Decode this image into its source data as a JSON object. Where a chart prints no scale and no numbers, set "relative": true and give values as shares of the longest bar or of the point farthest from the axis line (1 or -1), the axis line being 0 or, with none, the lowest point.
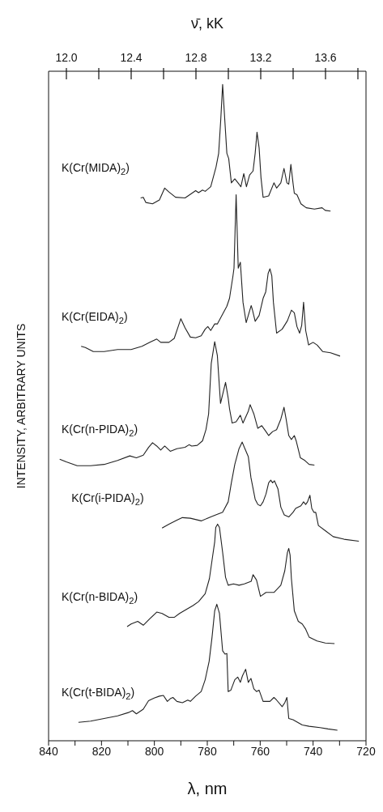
{
  "chart_data": {
    "type": "line",
    "relative": true,
    "xlabel": "λ, nm",
    "x2label": "ν̄, kK",
    "ylabel": "INTENSITY, ARBITRARY UNITS",
    "xlim": [
      840,
      720
    ],
    "xticks": [
      840,
      {
        "value": 830,
        "label": null
      },
      820,
      {
        "value": 810,
        "label": null
      },
      800,
      {
        "value": 790,
        "label": null
      },
      780,
      {
        "value": 770,
        "label": null
      },
      760,
      {
        "value": 750,
        "label": null
      },
      740,
      {
        "value": 730,
        "label": null
      },
      720
    ],
    "x2lim": [
      11.89,
      13.85
    ],
    "x2ticks": [
      {
        "value": 12.0,
        "label": "12.0"
      },
      {
        "value": 12.2,
        "label": null
      },
      {
        "value": 12.4,
        "label": "12.4"
      },
      {
        "value": 12.6,
        "label": null
      },
      {
        "value": 12.8,
        "label": "12.8"
      },
      {
        "value": 13.0,
        "label": null
      },
      {
        "value": 13.2,
        "label": "13.2"
      },
      {
        "value": 13.4,
        "label": null
      },
      {
        "value": 13.6,
        "label": "13.6"
      },
      {
        "value": 13.8,
        "label": null
      }
    ],
    "series": [
      {
        "name": "K(Cr(MIDA)$_{2}$)",
        "color": "#222222",
        "x": [
          805.2,
          804.2,
          803.2,
          800.7,
          798.1,
          796.1,
          794.5,
          792.0,
          788.4,
          784.4,
          783.3,
          781.8,
          780.8,
          778.7,
          776.7,
          775.7,
          774.9,
          774.2,
          773.4,
          772.6,
          771.9,
          770.9,
          769.6,
          768.2,
          767.3,
          766.2,
          765.2,
          764.0,
          762.7,
          761.9,
          761.2,
          760.4,
          759.7,
          758.9,
          756.8,
          754.8,
          753.8,
          752.2,
          751.0,
          749.9,
          749.2,
          748.4,
          747.6,
          747.1,
          746.1,
          744.6,
          742.6,
          739.5,
          736.6,
          735.4,
          733.4
        ],
        "values": [
          0.827,
          0.828,
          0.82,
          0.818,
          0.824,
          0.842,
          0.836,
          0.828,
          0.827,
          0.838,
          0.835,
          0.839,
          0.837,
          0.844,
          0.874,
          0.895,
          0.947,
          1.0,
          0.947,
          0.895,
          0.887,
          0.85,
          0.856,
          0.849,
          0.844,
          0.864,
          0.844,
          0.862,
          0.868,
          0.895,
          0.927,
          0.903,
          0.858,
          0.828,
          0.83,
          0.85,
          0.842,
          0.85,
          0.872,
          0.85,
          0.848,
          0.878,
          0.85,
          0.834,
          0.832,
          0.818,
          0.812,
          0.81,
          0.812,
          0.808,
          0.807
        ]
      },
      {
        "name": "K(Cr(EIDA)$_{2}$)",
        "color": "#222222",
        "x": [
          827.7,
          826.1,
          823.1,
          819.0,
          813.9,
          808.8,
          804.7,
          801.7,
          799.1,
          797.6,
          794.5,
          792.5,
          791.0,
          790.0,
          788.4,
          786.4,
          784.4,
          782.3,
          780.8,
          779.8,
          778.7,
          777.2,
          776.2,
          774.2,
          772.6,
          771.6,
          770.3,
          769.9,
          769.1,
          768.3,
          767.5,
          766.5,
          765.3,
          764.5,
          763.4,
          762.9,
          761.9,
          760.4,
          758.9,
          757.9,
          757.0,
          756.3,
          755.6,
          755.0,
          753.8,
          751.7,
          749.7,
          748.2,
          747.1,
          746.1,
          745.1,
          744.3,
          743.6,
          742.8,
          741.7,
          740.0,
          738.5,
          736.4,
          733.4,
          729.8
        ],
        "values": [
          0.601,
          0.599,
          0.593,
          0.593,
          0.596,
          0.596,
          0.601,
          0.607,
          0.612,
          0.607,
          0.607,
          0.613,
          0.631,
          0.643,
          0.629,
          0.615,
          0.614,
          0.617,
          0.627,
          0.631,
          0.625,
          0.635,
          0.635,
          0.65,
          0.662,
          0.674,
          0.708,
          0.72,
          0.832,
          0.72,
          0.729,
          0.668,
          0.637,
          0.648,
          0.663,
          0.656,
          0.639,
          0.648,
          0.674,
          0.684,
          0.712,
          0.719,
          0.708,
          0.668,
          0.621,
          0.627,
          0.64,
          0.656,
          0.652,
          0.631,
          0.621,
          0.633,
          0.668,
          0.625,
          0.603,
          0.607,
          0.603,
          0.593,
          0.591,
          0.586
        ]
      },
      {
        "name": "K(Cr(n-PIDA)$_{2}$)",
        "color": "#222222",
        "x": [
          835.8,
          833.3,
          829.2,
          824.1,
          819.0,
          813.9,
          809.3,
          806.8,
          804.2,
          802.2,
          800.7,
          799.1,
          797.6,
          796.1,
          794.0,
          791.5,
          788.4,
          786.9,
          785.9,
          783.8,
          781.8,
          780.5,
          779.5,
          778.5,
          777.2,
          776.2,
          775.0,
          773.1,
          772.1,
          771.6,
          770.6,
          769.1,
          767.5,
          766.5,
          764.5,
          763.8,
          762.4,
          760.9,
          759.4,
          757.8,
          756.8,
          755.3,
          753.8,
          752.2,
          751.0,
          750.2,
          749.2,
          748.2,
          747.1,
          746.4,
          744.8,
          743.1,
          741.5,
          739.5
        ],
        "values": [
          0.429,
          0.425,
          0.419,
          0.419,
          0.421,
          0.427,
          0.434,
          0.431,
          0.435,
          0.447,
          0.454,
          0.449,
          0.443,
          0.449,
          0.441,
          0.445,
          0.447,
          0.451,
          0.449,
          0.45,
          0.457,
          0.474,
          0.498,
          0.575,
          0.608,
          0.587,
          0.514,
          0.546,
          0.522,
          0.506,
          0.484,
          0.486,
          0.496,
          0.484,
          0.502,
          0.512,
          0.498,
          0.476,
          0.48,
          0.471,
          0.465,
          0.471,
          0.474,
          0.49,
          0.508,
          0.49,
          0.465,
          0.459,
          0.465,
          0.457,
          0.431,
          0.427,
          0.421,
          0.42
        ]
      },
      {
        "name": "K(Cr(i-PIDA)$_{2}$)",
        "color": "#222222",
        "x": [
          797.1,
          794.5,
          791.5,
          789.4,
          786.4,
          782.3,
          778.7,
          776.2,
          774.2,
          772.1,
          770.9,
          769.6,
          768.0,
          766.8,
          766.0,
          764.5,
          763.5,
          761.9,
          760.9,
          759.9,
          758.9,
          757.8,
          756.8,
          756.0,
          755.3,
          754.6,
          753.3,
          752.2,
          750.9,
          749.2,
          747.6,
          746.6,
          744.6,
          743.6,
          742.8,
          742.1,
          741.2,
          740.5,
          739.7,
          739.0,
          738.0,
          735.4,
          732.4,
          728.3,
          722.7
        ],
        "values": [
          0.324,
          0.33,
          0.336,
          0.34,
          0.339,
          0.335,
          0.341,
          0.345,
          0.348,
          0.364,
          0.393,
          0.421,
          0.445,
          0.455,
          0.447,
          0.433,
          0.401,
          0.368,
          0.36,
          0.358,
          0.364,
          0.376,
          0.393,
          0.397,
          0.393,
          0.396,
          0.384,
          0.356,
          0.344,
          0.341,
          0.348,
          0.354,
          0.358,
          0.364,
          0.36,
          0.364,
          0.374,
          0.354,
          0.348,
          0.348,
          0.328,
          0.32,
          0.311,
          0.307,
          0.304
        ]
      },
      {
        "name": "K(Cr(n-BIDA)$_{2}$)",
        "color": "#222222",
        "x": [
          810.3,
          808.8,
          806.3,
          804.2,
          801.7,
          799.1,
          797.1,
          794.5,
          792.5,
          790.5,
          787.9,
          785.4,
          783.3,
          780.8,
          779.2,
          778.2,
          777.2,
          776.8,
          776.1,
          775.4,
          774.2,
          773.1,
          772.1,
          770.1,
          768.0,
          766.0,
          763.4,
          762.7,
          761.4,
          759.9,
          757.8,
          754.8,
          752.2,
          750.7,
          749.7,
          749.2,
          748.7,
          748.2,
          747.1,
          745.6,
          744.1,
          742.8,
          741.5,
          738.5,
          735.4,
          731.9
        ],
        "values": [
          0.174,
          0.178,
          0.182,
          0.176,
          0.186,
          0.196,
          0.194,
          0.188,
          0.188,
          0.194,
          0.2,
          0.206,
          0.212,
          0.224,
          0.247,
          0.275,
          0.303,
          0.325,
          0.33,
          0.325,
          0.287,
          0.249,
          0.237,
          0.239,
          0.237,
          0.239,
          0.243,
          0.253,
          0.245,
          0.22,
          0.226,
          0.226,
          0.237,
          0.259,
          0.287,
          0.293,
          0.283,
          0.247,
          0.198,
          0.182,
          0.178,
          0.17,
          0.158,
          0.152,
          0.149,
          0.148
        ]
      },
      {
        "name": "K(Cr(t-BIDA)$_{2}$)",
        "color": "#222222",
        "x": [
          828.7,
          824.1,
          819.0,
          813.9,
          809.8,
          808.3,
          806.8,
          804.2,
          802.2,
          800.1,
          798.1,
          796.6,
          795.1,
          794.0,
          793.0,
          791.5,
          789.4,
          787.4,
          786.4,
          784.4,
          782.3,
          780.8,
          779.3,
          778.2,
          777.2,
          776.4,
          775.4,
          774.2,
          773.3,
          772.6,
          772.1,
          771.1,
          769.6,
          768.5,
          767.5,
          766.7,
          765.5,
          764.5,
          763.5,
          762.4,
          761.4,
          760.4,
          758.9,
          756.3,
          754.8,
          753.8,
          751.7,
          750.7,
          749.9,
          749.2,
          747.6,
          744.1,
          741.5,
          737.4,
          734.4,
          730.8
        ],
        "values": [
          0.028,
          0.03,
          0.034,
          0.038,
          0.043,
          0.046,
          0.041,
          0.048,
          0.061,
          0.065,
          0.068,
          0.069,
          0.06,
          0.064,
          0.066,
          0.06,
          0.058,
          0.062,
          0.06,
          0.068,
          0.075,
          0.093,
          0.121,
          0.158,
          0.198,
          0.208,
          0.194,
          0.137,
          0.132,
          0.133,
          0.075,
          0.077,
          0.093,
          0.097,
          0.089,
          0.099,
          0.109,
          0.089,
          0.095,
          0.079,
          0.075,
          0.077,
          0.06,
          0.06,
          0.066,
          0.062,
          0.052,
          0.058,
          0.066,
          0.034,
          0.032,
          0.024,
          0.022,
          0.02,
          0.018,
          0.016
        ]
      }
    ]
  }
}
